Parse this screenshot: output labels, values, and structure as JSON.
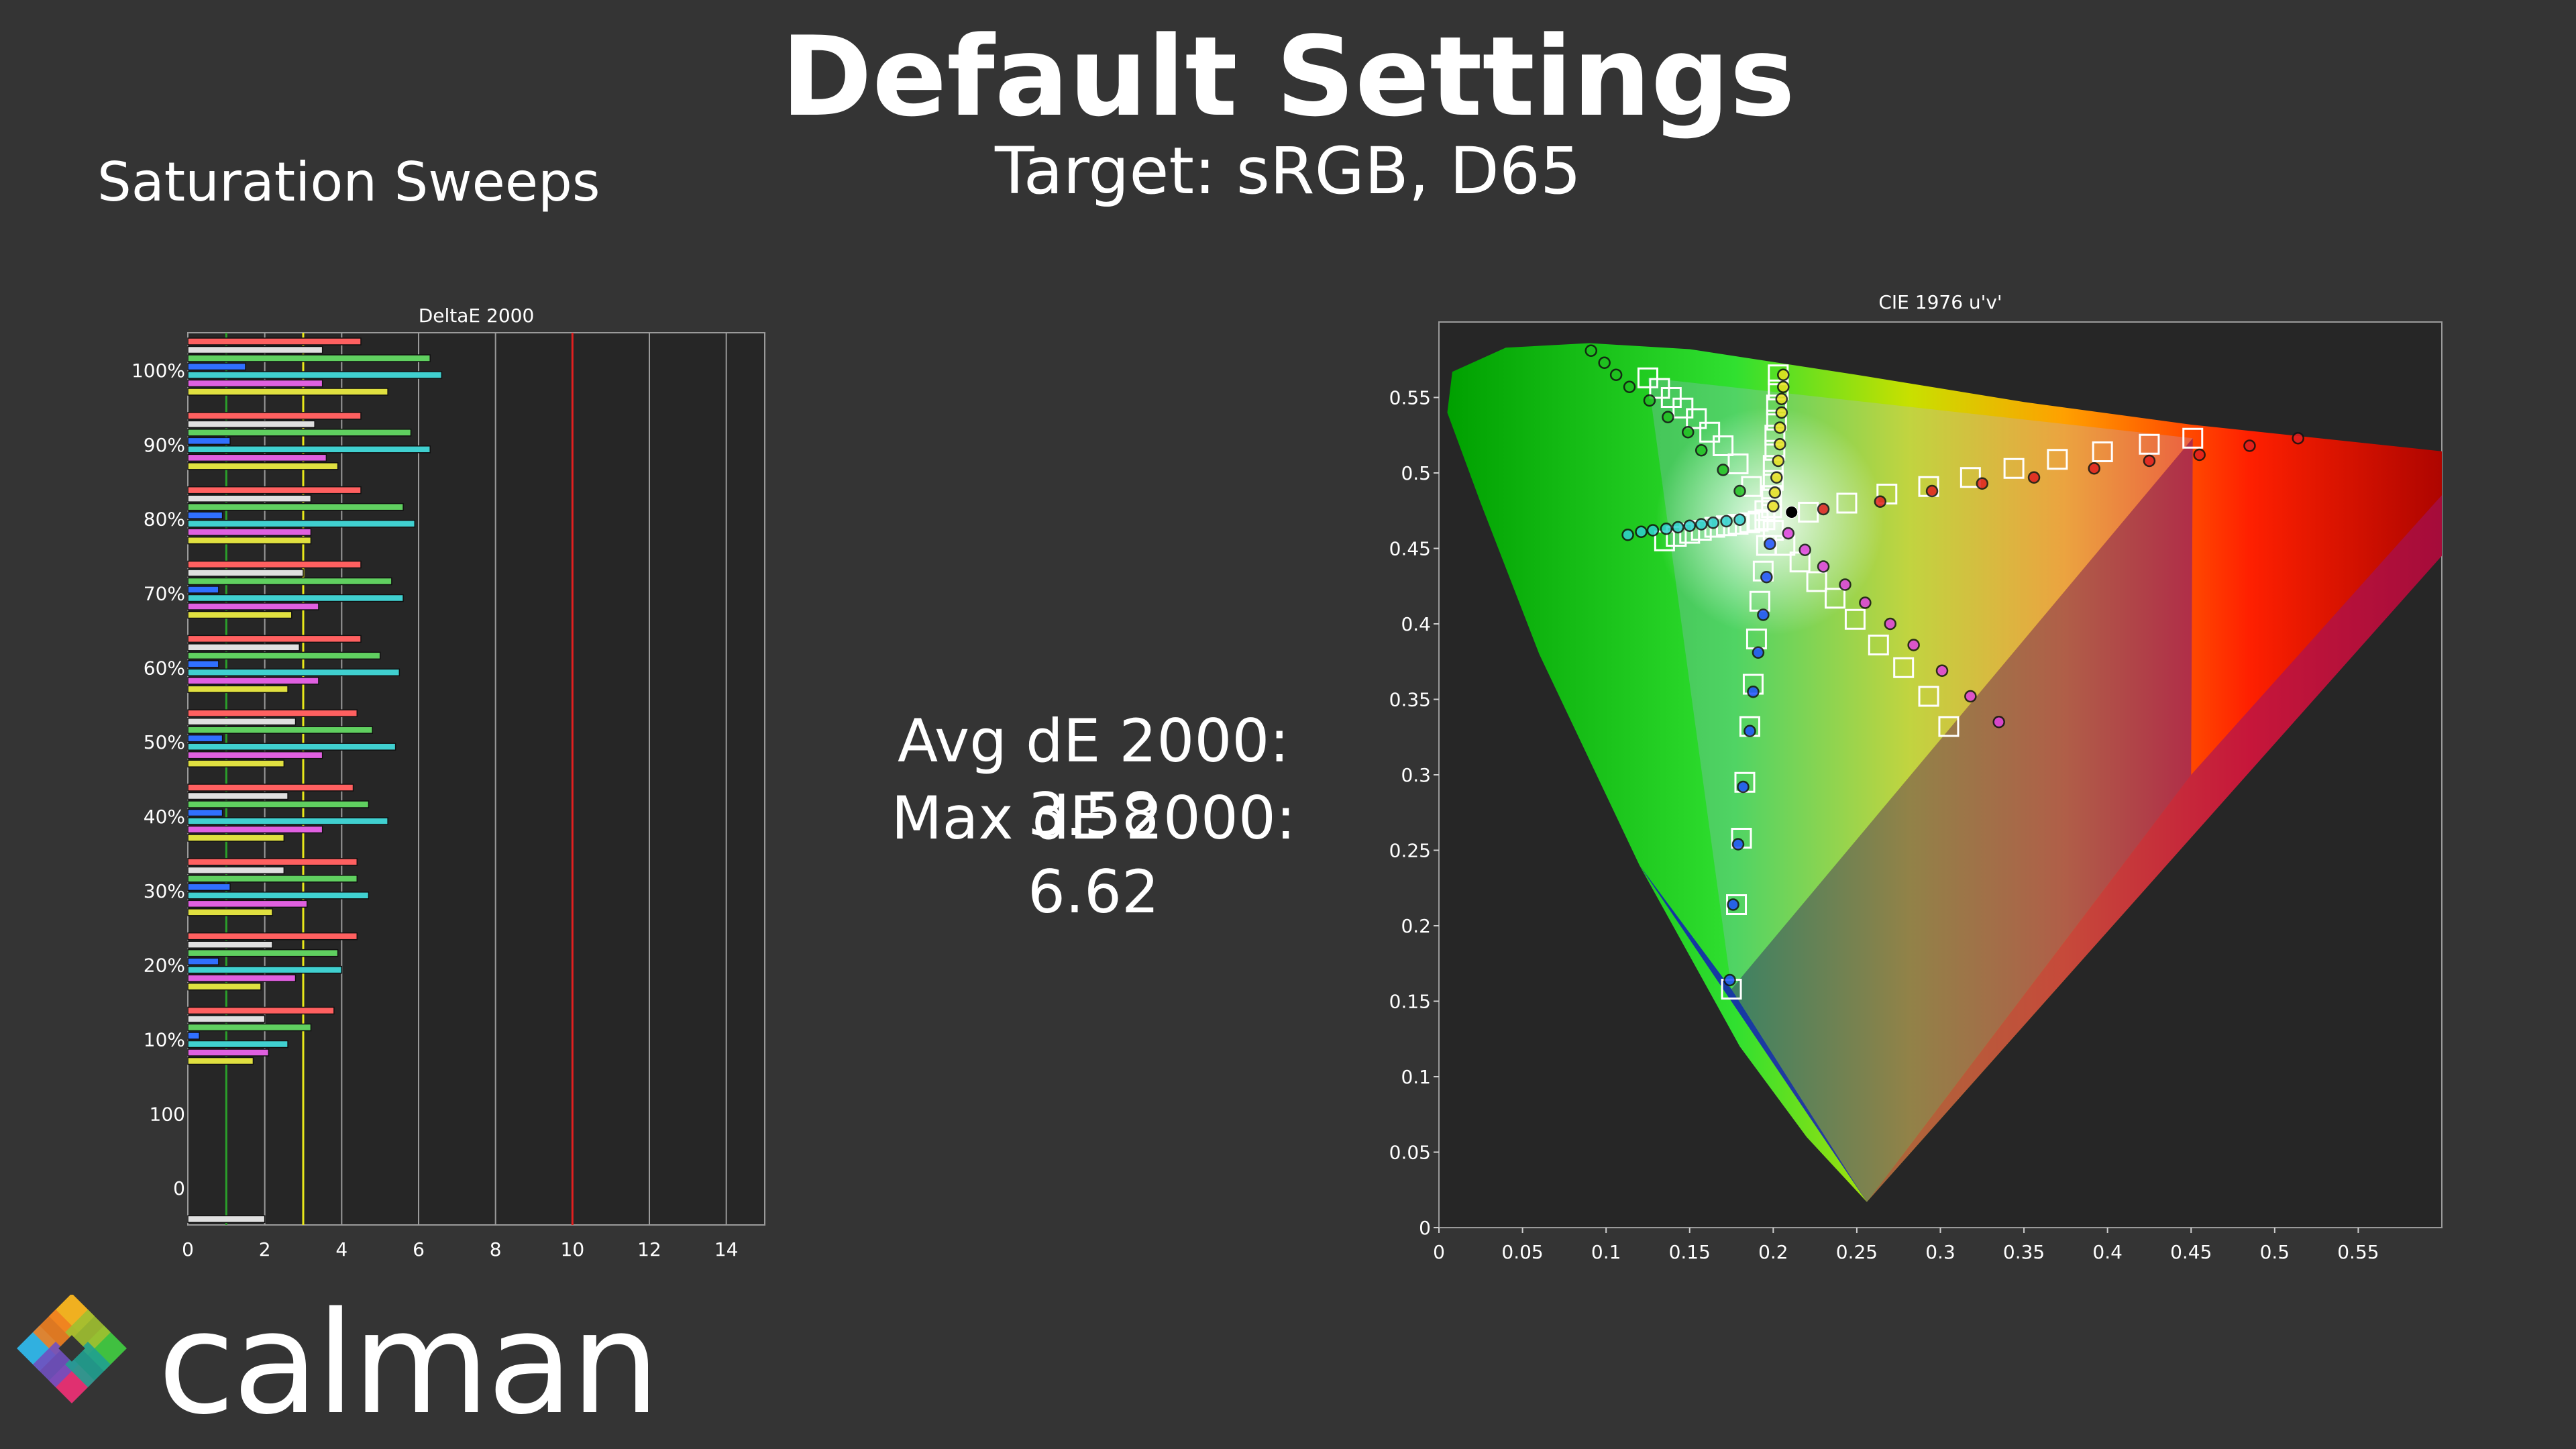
{
  "header": {
    "title": "Default Settings",
    "subtitle": "Target: sRGB, D65",
    "section_label": "Saturation Sweeps"
  },
  "stats": {
    "avg": "Avg dE 2000: 3.58",
    "max": "Max dE 2000: 6.62"
  },
  "logo": {
    "text": "calman"
  },
  "chart_data": [
    {
      "type": "bar",
      "orientation": "horizontal",
      "title": "DeltaE 2000",
      "categories": [
        "100%",
        "90%",
        "80%",
        "70%",
        "60%",
        "50%",
        "40%",
        "30%",
        "20%",
        "10%",
        "100",
        "0"
      ],
      "xlim": [
        0,
        15
      ],
      "xticks": [
        "0",
        "2",
        "4",
        "6",
        "8",
        "10",
        "12",
        "14"
      ],
      "reference_lines": [
        {
          "value": 1,
          "color": "#2aa02a"
        },
        {
          "value": 3,
          "color": "#e8e81a"
        },
        {
          "value": 10,
          "color": "#e02020"
        }
      ],
      "series_colors": [
        "#ff6060",
        "#e0e0e0",
        "#60d060",
        "#3070ff",
        "#40d0d0",
        "#e060e0",
        "#e0e040"
      ],
      "values": {
        "100%": [
          4.5,
          3.5,
          6.3,
          1.5,
          6.6,
          3.5,
          5.2
        ],
        "90%": [
          4.5,
          3.3,
          5.8,
          1.1,
          6.3,
          3.6,
          3.9
        ],
        "80%": [
          4.5,
          3.2,
          5.6,
          0.9,
          5.9,
          3.2,
          3.2
        ],
        "70%": [
          4.5,
          3.0,
          5.3,
          0.8,
          5.6,
          3.4,
          2.7
        ],
        "60%": [
          4.5,
          2.9,
          5.0,
          0.8,
          5.5,
          3.4,
          2.6
        ],
        "50%": [
          4.4,
          2.8,
          4.8,
          0.9,
          5.4,
          3.5,
          2.5
        ],
        "40%": [
          4.3,
          2.6,
          4.7,
          0.9,
          5.2,
          3.5,
          2.5
        ],
        "30%": [
          4.4,
          2.5,
          4.4,
          1.1,
          4.7,
          3.1,
          2.2
        ],
        "20%": [
          4.4,
          2.2,
          3.9,
          0.8,
          4.0,
          2.8,
          1.9
        ],
        "10%": [
          3.8,
          2.0,
          3.2,
          0.3,
          2.6,
          2.1,
          1.7
        ],
        "100": [
          2.0
        ],
        "0": []
      }
    },
    {
      "type": "scatter",
      "title": "CIE 1976 u'v'",
      "xlim": [
        0,
        0.6
      ],
      "ylim": [
        0,
        0.6
      ],
      "xticks": [
        "0",
        "0.05",
        "0.1",
        "0.15",
        "0.2",
        "0.25",
        "0.3",
        "0.35",
        "0.4",
        "0.45",
        "0.5",
        "0.55"
      ],
      "yticks": [
        "0",
        "0.05",
        "0.1",
        "0.15",
        "0.2",
        "0.25",
        "0.3",
        "0.35",
        "0.4",
        "0.45",
        "0.5",
        "0.55"
      ],
      "gamut_triangle": [
        [
          0.451,
          0.523
        ],
        [
          0.125,
          0.563
        ],
        [
          0.175,
          0.158
        ]
      ],
      "white_point": [
        0.198,
        0.468
      ],
      "targets": [
        [
          0.451,
          0.523
        ],
        [
          0.425,
          0.519
        ],
        [
          0.397,
          0.514
        ],
        [
          0.37,
          0.509
        ],
        [
          0.344,
          0.503
        ],
        [
          0.318,
          0.497
        ],
        [
          0.293,
          0.491
        ],
        [
          0.268,
          0.486
        ],
        [
          0.244,
          0.48
        ],
        [
          0.221,
          0.474
        ],
        [
          0.125,
          0.563
        ],
        [
          0.132,
          0.556
        ],
        [
          0.139,
          0.55
        ],
        [
          0.146,
          0.543
        ],
        [
          0.154,
          0.536
        ],
        [
          0.162,
          0.527
        ],
        [
          0.17,
          0.518
        ],
        [
          0.179,
          0.506
        ],
        [
          0.187,
          0.491
        ],
        [
          0.195,
          0.475
        ],
        [
          0.175,
          0.158
        ],
        [
          0.178,
          0.214
        ],
        [
          0.181,
          0.258
        ],
        [
          0.183,
          0.295
        ],
        [
          0.186,
          0.332
        ],
        [
          0.188,
          0.36
        ],
        [
          0.19,
          0.39
        ],
        [
          0.192,
          0.415
        ],
        [
          0.194,
          0.435
        ],
        [
          0.196,
          0.452
        ],
        [
          0.305,
          0.332
        ],
        [
          0.293,
          0.352
        ],
        [
          0.278,
          0.371
        ],
        [
          0.263,
          0.386
        ],
        [
          0.249,
          0.403
        ],
        [
          0.237,
          0.417
        ],
        [
          0.226,
          0.428
        ],
        [
          0.216,
          0.441
        ],
        [
          0.207,
          0.452
        ],
        [
          0.2,
          0.462
        ],
        [
          0.135,
          0.455
        ],
        [
          0.142,
          0.458
        ],
        [
          0.15,
          0.46
        ],
        [
          0.157,
          0.462
        ],
        [
          0.165,
          0.464
        ],
        [
          0.172,
          0.465
        ],
        [
          0.179,
          0.466
        ],
        [
          0.186,
          0.467
        ],
        [
          0.191,
          0.468
        ],
        [
          0.195,
          0.469
        ],
        [
          0.203,
          0.565
        ],
        [
          0.203,
          0.555
        ],
        [
          0.202,
          0.545
        ],
        [
          0.202,
          0.535
        ],
        [
          0.201,
          0.525
        ],
        [
          0.201,
          0.515
        ],
        [
          0.2,
          0.505
        ],
        [
          0.2,
          0.495
        ],
        [
          0.199,
          0.485
        ],
        [
          0.199,
          0.477
        ]
      ],
      "measurements": [
        {
          "color": "#e02020",
          "points": [
            [
              0.514,
              0.523
            ],
            [
              0.485,
              0.518
            ],
            [
              0.455,
              0.512
            ],
            [
              0.425,
              0.508
            ],
            [
              0.392,
              0.503
            ],
            [
              0.356,
              0.497
            ],
            [
              0.325,
              0.493
            ],
            [
              0.295,
              0.488
            ],
            [
              0.264,
              0.481
            ],
            [
              0.23,
              0.476
            ]
          ]
        },
        {
          "color": "#20c020",
          "points": [
            [
              0.091,
              0.581
            ],
            [
              0.099,
              0.573
            ],
            [
              0.106,
              0.565
            ],
            [
              0.114,
              0.557
            ],
            [
              0.126,
              0.548
            ],
            [
              0.137,
              0.537
            ],
            [
              0.149,
              0.527
            ],
            [
              0.157,
              0.515
            ],
            [
              0.17,
              0.502
            ],
            [
              0.18,
              0.488
            ]
          ]
        },
        {
          "color": "#2050ff",
          "points": [
            [
              0.174,
              0.164
            ],
            [
              0.176,
              0.214
            ],
            [
              0.179,
              0.254
            ],
            [
              0.182,
              0.292
            ],
            [
              0.186,
              0.329
            ],
            [
              0.188,
              0.355
            ],
            [
              0.191,
              0.381
            ],
            [
              0.194,
              0.406
            ],
            [
              0.196,
              0.431
            ],
            [
              0.198,
              0.453
            ]
          ]
        },
        {
          "color": "#e040e0",
          "points": [
            [
              0.335,
              0.335
            ],
            [
              0.318,
              0.352
            ],
            [
              0.301,
              0.369
            ],
            [
              0.284,
              0.386
            ],
            [
              0.27,
              0.4
            ],
            [
              0.255,
              0.414
            ],
            [
              0.243,
              0.426
            ],
            [
              0.23,
              0.438
            ],
            [
              0.219,
              0.449
            ],
            [
              0.209,
              0.46
            ]
          ]
        },
        {
          "color": "#30d0d0",
          "points": [
            [
              0.113,
              0.459
            ],
            [
              0.121,
              0.461
            ],
            [
              0.128,
              0.462
            ],
            [
              0.136,
              0.463
            ],
            [
              0.143,
              0.464
            ],
            [
              0.15,
              0.465
            ],
            [
              0.157,
              0.466
            ],
            [
              0.164,
              0.467
            ],
            [
              0.172,
              0.468
            ],
            [
              0.18,
              0.469
            ]
          ]
        },
        {
          "color": "#e8e020",
          "points": [
            [
              0.206,
              0.565
            ],
            [
              0.206,
              0.557
            ],
            [
              0.205,
              0.549
            ],
            [
              0.205,
              0.54
            ],
            [
              0.204,
              0.53
            ],
            [
              0.204,
              0.519
            ],
            [
              0.203,
              0.508
            ],
            [
              0.202,
              0.497
            ],
            [
              0.201,
              0.487
            ],
            [
              0.2,
              0.478
            ]
          ]
        }
      ],
      "white_measured": [
        0.211,
        0.474
      ]
    }
  ]
}
